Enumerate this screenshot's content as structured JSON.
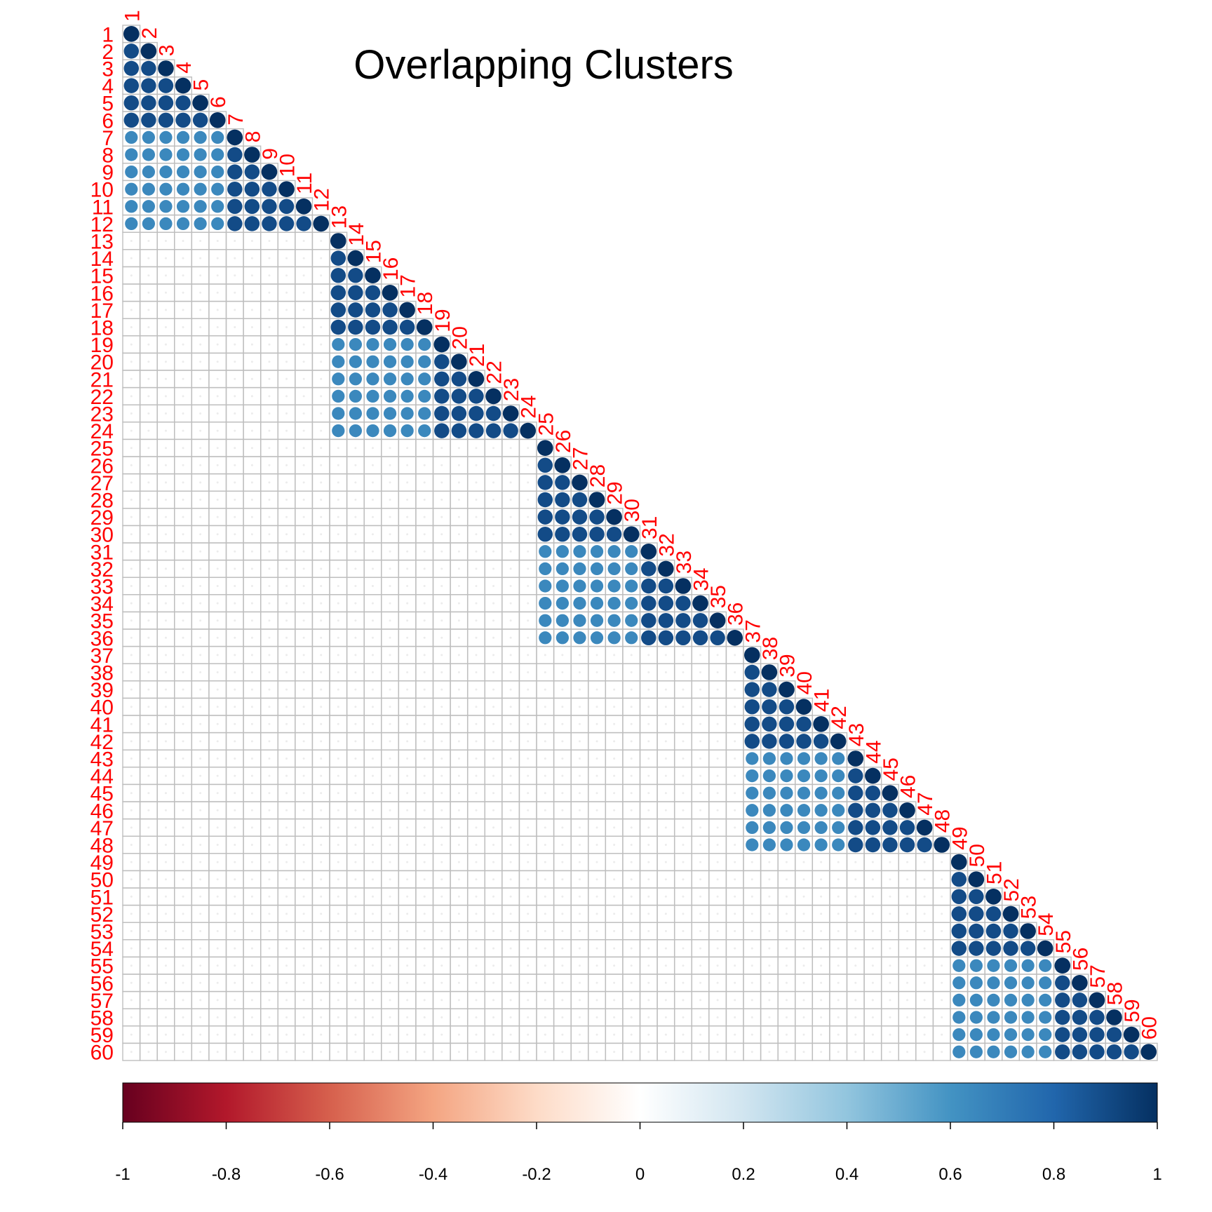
{
  "chart_data": {
    "type": "heatmap",
    "subtype": "correlation-matrix-lower-circles",
    "title": "Overlapping Clusters",
    "n_vars": 60,
    "variables": [
      "1",
      "2",
      "3",
      "4",
      "5",
      "6",
      "7",
      "8",
      "9",
      "10",
      "11",
      "12",
      "13",
      "14",
      "15",
      "16",
      "17",
      "18",
      "19",
      "20",
      "21",
      "22",
      "23",
      "24",
      "25",
      "26",
      "27",
      "28",
      "29",
      "30",
      "31",
      "32",
      "33",
      "34",
      "35",
      "36",
      "37",
      "38",
      "39",
      "40",
      "41",
      "42",
      "43",
      "44",
      "45",
      "46",
      "47",
      "48",
      "49",
      "50",
      "51",
      "52",
      "53",
      "54",
      "55",
      "56",
      "57",
      "58",
      "59",
      "60"
    ],
    "blocks": [
      {
        "vars": [
          1,
          12
        ],
        "core_a": [
          1,
          6
        ],
        "core_b": [
          7,
          12
        ]
      },
      {
        "vars": [
          13,
          24
        ],
        "core_a": [
          13,
          18
        ],
        "core_b": [
          19,
          24
        ]
      },
      {
        "vars": [
          25,
          36
        ],
        "core_a": [
          25,
          30
        ],
        "core_b": [
          31,
          36
        ]
      },
      {
        "vars": [
          37,
          48
        ],
        "core_a": [
          37,
          42
        ],
        "core_b": [
          43,
          48
        ]
      },
      {
        "vars": [
          49,
          60
        ],
        "core_a": [
          49,
          54
        ],
        "core_b": [
          55,
          60
        ]
      }
    ],
    "correlation_values": {
      "diagonal": 1,
      "within_core": 0.9,
      "between_cores_same_block": 0.65,
      "between_blocks": 0
    },
    "colorbar": {
      "range": [
        -1,
        1
      ],
      "ticks": [
        "-1",
        "-0.8",
        "-0.6",
        "-0.4",
        "-0.2",
        "0",
        "0.2",
        "0.4",
        "0.6",
        "0.8",
        "1"
      ],
      "colors": [
        "#67001F",
        "#B2182B",
        "#D6604D",
        "#F4A582",
        "#FDDBC7",
        "#FFFFFF",
        "#D1E5F0",
        "#92C5DE",
        "#4393C3",
        "#2166AC",
        "#053061"
      ]
    },
    "label_color": "#FF0000",
    "grid_color": "#BEBEBE"
  }
}
